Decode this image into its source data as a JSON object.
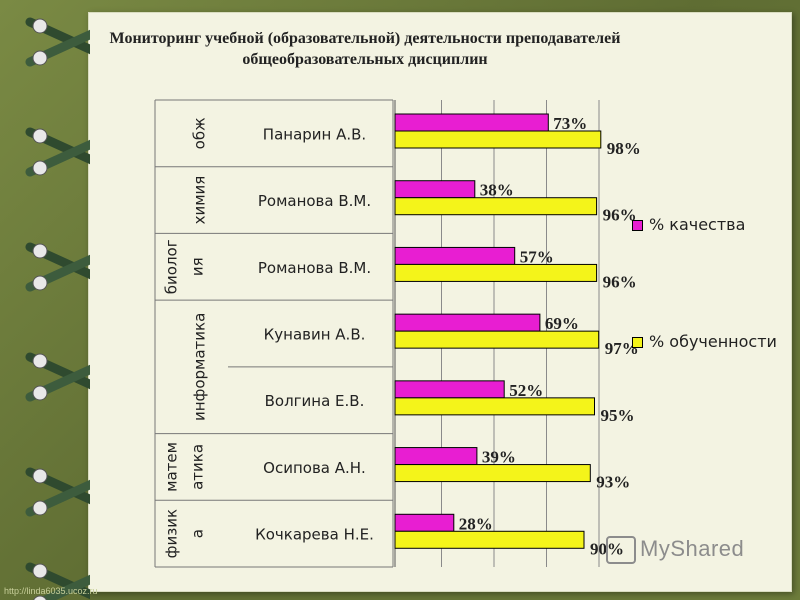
{
  "title": "Мониторинг учебной (образовательной) деятельности преподавателей общеобразовательных дисциплин",
  "legend": [
    {
      "label": "% качества",
      "color": "#e81ed2"
    },
    {
      "label": "% обученности",
      "color": "#f4f41a"
    }
  ],
  "watermark_url": "http://linda6035.ucoz.ru",
  "logo_text": "MyShared",
  "chart_data": {
    "type": "bar",
    "orientation": "horizontal",
    "title": "Мониторинг учебной (образовательной) деятельности преподавателей общеобразовательных дисциплин",
    "subjects": [
      {
        "label": "обж",
        "teachers": [
          "Панарин А.В."
        ]
      },
      {
        "label": "химия",
        "teachers": [
          "Романова В.М."
        ]
      },
      {
        "label": "биолог ия",
        "teachers": [
          "Романова В.М."
        ]
      },
      {
        "label": "информатика",
        "teachers": [
          "Кунавин А.В.",
          "Волгина Е.В."
        ]
      },
      {
        "label": "матем атика",
        "teachers": [
          "Осипова А.Н."
        ]
      },
      {
        "label": "физик а",
        "teachers": [
          "Кочкарева Н.Е."
        ]
      }
    ],
    "categories": [
      "Панарин А.В.",
      "Романова В.М.",
      "Романова В.М.",
      "Кунавин А.В.",
      "Волгина Е.В.",
      "Осипова А.Н.",
      "Кочкарева Н.Е."
    ],
    "series": [
      {
        "name": "% качества",
        "color": "#e81ed2",
        "values": [
          73,
          38,
          57,
          69,
          52,
          39,
          28
        ],
        "labels": [
          "73%",
          "38%",
          "57%",
          "69%",
          "52%",
          "39%",
          "28%"
        ]
      },
      {
        "name": "% обученности",
        "color": "#f4f41a",
        "values": [
          98,
          96,
          96,
          97,
          95,
          93,
          90
        ],
        "labels": [
          "98%",
          "96%",
          "96%",
          "97%",
          "95%",
          "93%",
          "90%"
        ]
      }
    ],
    "xlim": [
      0,
      100
    ],
    "grid": true,
    "legend_position": "right"
  }
}
